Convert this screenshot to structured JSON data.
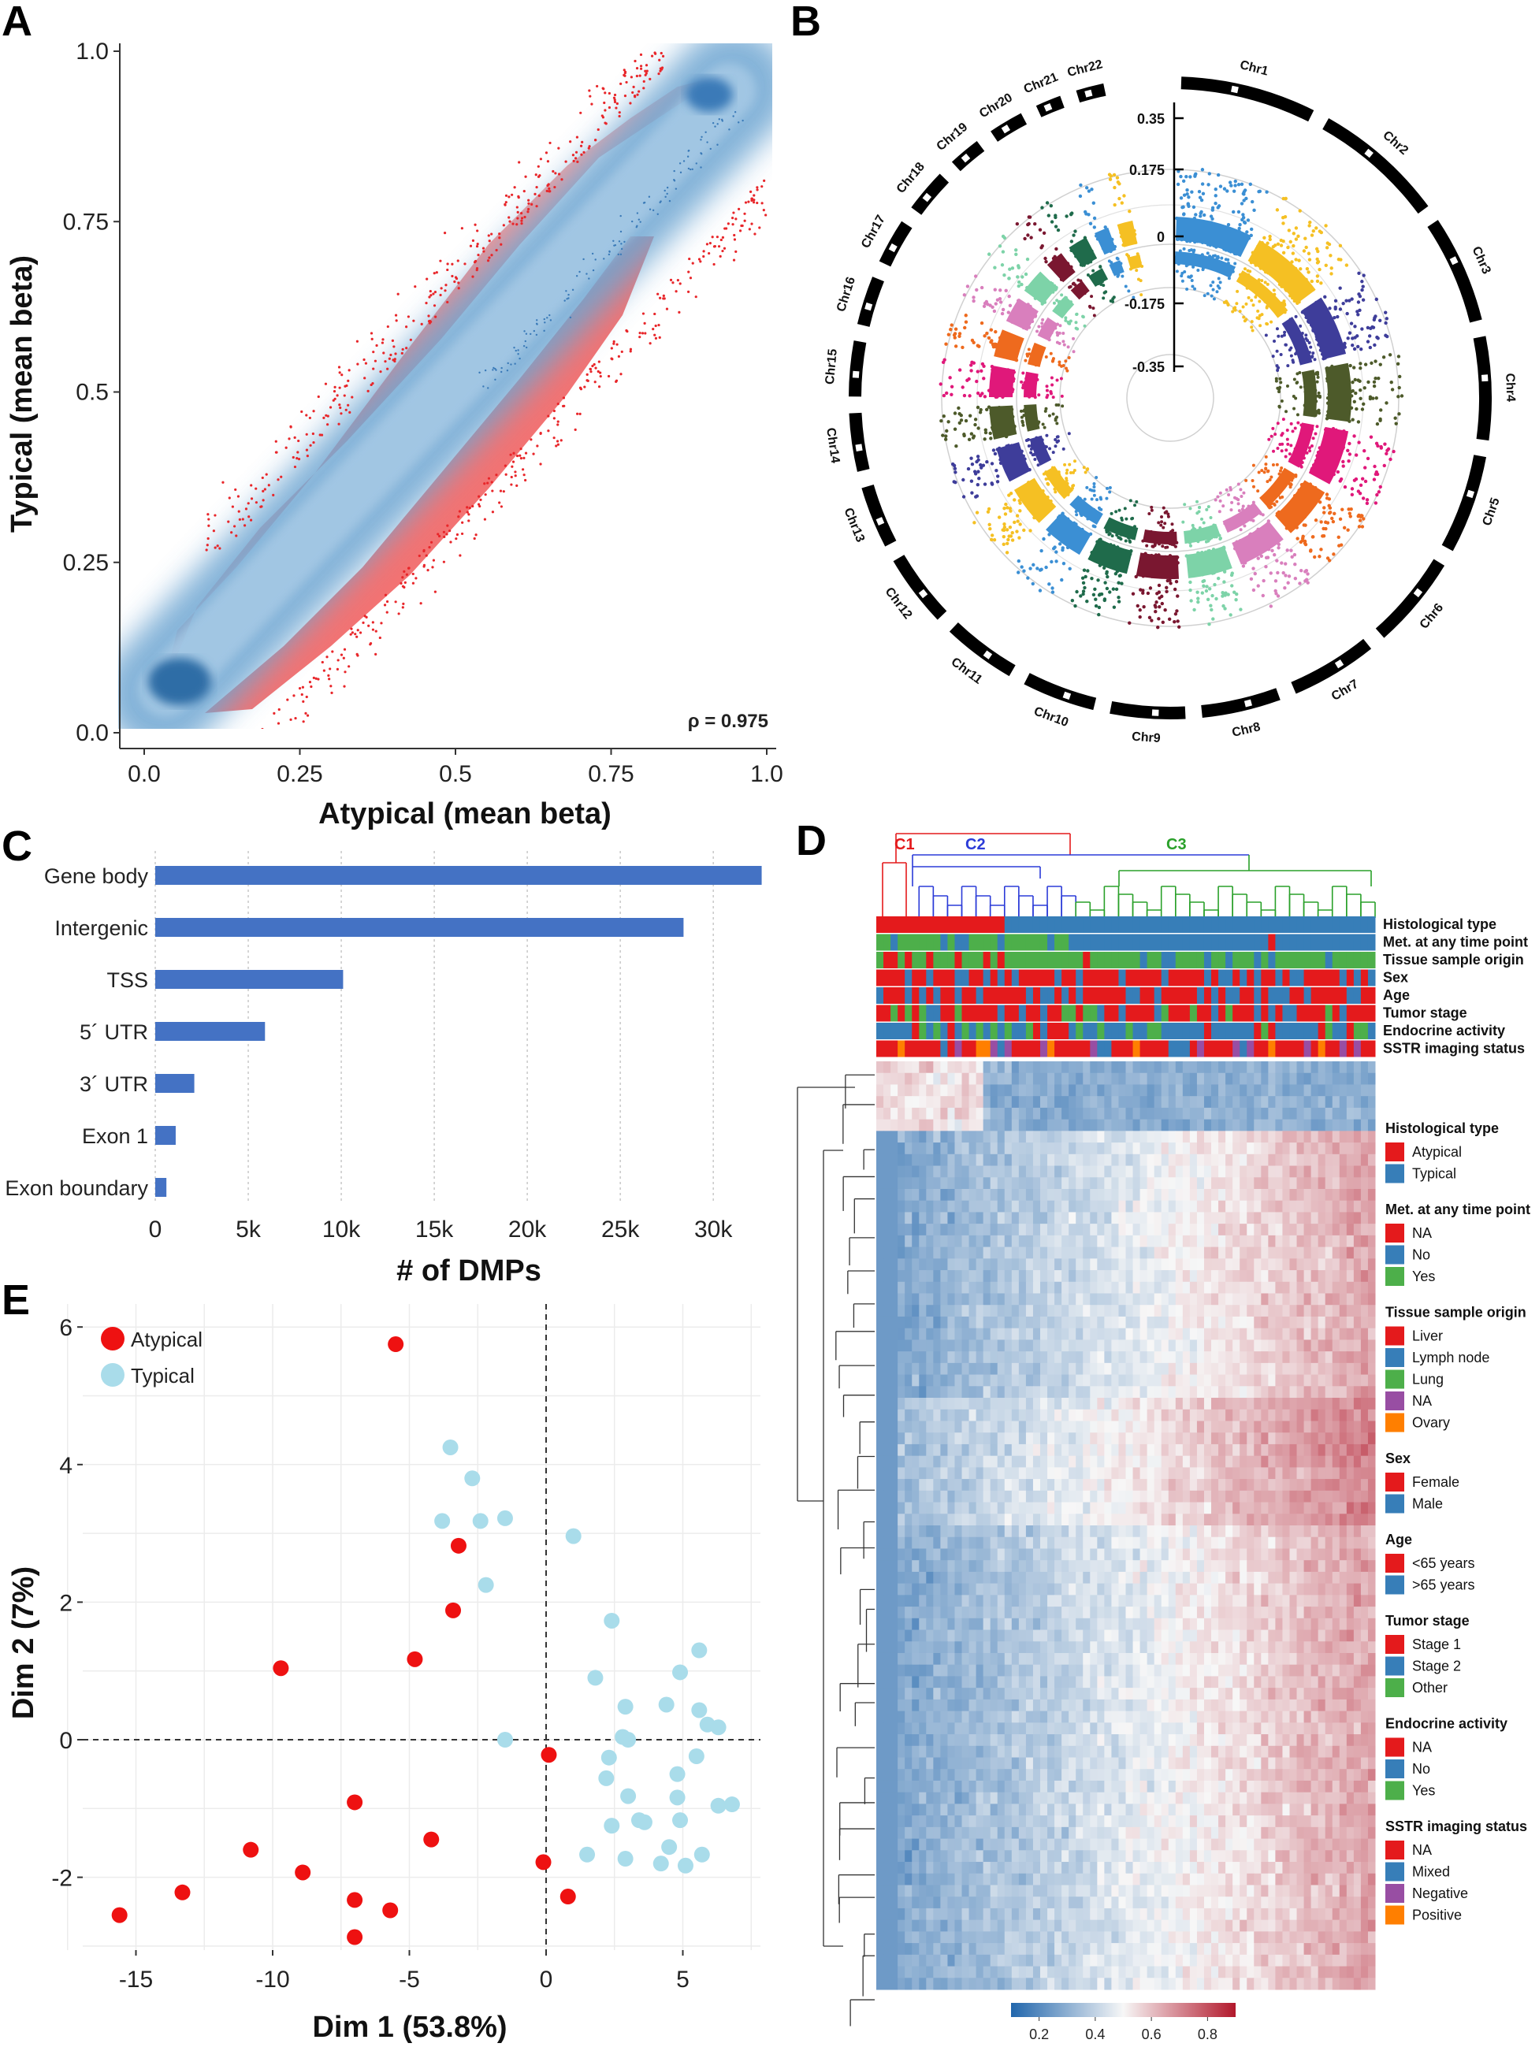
{
  "chart_data": [
    {
      "panel": "A",
      "type": "scatter",
      "xlabel": "Atypical (mean beta)",
      "ylabel": "Typical (mean beta)",
      "xlim": [
        0,
        1
      ],
      "ylim": [
        0,
        1
      ],
      "xticks": [
        "0.0",
        "0.25",
        "0.5",
        "0.75",
        "1.0"
      ],
      "yticks": [
        "0.0",
        "0.25",
        "0.5",
        "0.75",
        "1.0"
      ],
      "annotation": "ρ = 0.975",
      "colors": {
        "density": "#3a7ab8",
        "dmp": "#e8262a"
      }
    },
    {
      "panel": "B",
      "type": "manhattan-circular",
      "chromosomes": [
        "Chr1",
        "Chr2",
        "Chr3",
        "Chr4",
        "Chr5",
        "Chr6",
        "Chr7",
        "Chr8",
        "Chr9",
        "Chr10",
        "Chr11",
        "Chr12",
        "Chr13",
        "Chr14",
        "Chr15",
        "Chr16",
        "Chr17",
        "Chr18",
        "Chr19",
        "Chr20",
        "Chr21",
        "Chr22"
      ],
      "radial_ticks": [
        "0.35",
        "0.175",
        "0",
        "-0.175",
        "-0.35"
      ],
      "colors": [
        "#3b8fd4",
        "#f5c023",
        "#3e3d9a",
        "#4d5a2a",
        "#e0187a",
        "#ee6a1e",
        "#d97fbd",
        "#7dd3a8",
        "#7a1730",
        "#1f6b4b"
      ]
    },
    {
      "panel": "C",
      "type": "bar",
      "orientation": "horizontal",
      "categories": [
        "Gene body",
        "Intergenic",
        "TSS",
        "5´ UTR",
        "3´ UTR",
        "Exon 1",
        "Exon boundary"
      ],
      "values": [
        32600,
        28400,
        10100,
        5900,
        2100,
        1100,
        600
      ],
      "xlabel": "# of DMPs",
      "xticks": [
        "0",
        "5k",
        "10k",
        "15k",
        "20k",
        "25k",
        "30k"
      ],
      "xlim": [
        0,
        33000
      ],
      "color": "#4472c4"
    },
    {
      "panel": "D",
      "type": "heatmap",
      "clusters": [
        "C1",
        "C2",
        "C3"
      ],
      "annotation_tracks": [
        "Histological type",
        "Met. at any time point",
        "Tissue sample origin",
        "Sex",
        "Age",
        "Tumor stage",
        "Endocrine activity",
        "SSTR imaging status"
      ],
      "legend": [
        {
          "title": "Histological type",
          "items": [
            {
              "label": "Atypical",
              "color": "#e41a1c"
            },
            {
              "label": "Typical",
              "color": "#377eb8"
            }
          ]
        },
        {
          "title": "Met. at any time point",
          "items": [
            {
              "label": "NA",
              "color": "#e41a1c"
            },
            {
              "label": "No",
              "color": "#377eb8"
            },
            {
              "label": "Yes",
              "color": "#4daf4a"
            }
          ]
        },
        {
          "title": "Tissue sample origin",
          "items": [
            {
              "label": "Liver",
              "color": "#e41a1c"
            },
            {
              "label": "Lymph node",
              "color": "#377eb8"
            },
            {
              "label": "Lung",
              "color": "#4daf4a"
            },
            {
              "label": "NA",
              "color": "#984ea3"
            },
            {
              "label": "Ovary",
              "color": "#ff7f00"
            }
          ]
        },
        {
          "title": "Sex",
          "items": [
            {
              "label": "Female",
              "color": "#e41a1c"
            },
            {
              "label": "Male",
              "color": "#377eb8"
            }
          ]
        },
        {
          "title": "Age",
          "items": [
            {
              "label": "<65 years",
              "color": "#e41a1c"
            },
            {
              "label": ">65 years",
              "color": "#377eb8"
            }
          ]
        },
        {
          "title": "Tumor stage",
          "items": [
            {
              "label": "Stage 1",
              "color": "#e41a1c"
            },
            {
              "label": "Stage 2",
              "color": "#377eb8"
            },
            {
              "label": "Other",
              "color": "#4daf4a"
            }
          ]
        },
        {
          "title": "Endocrine activity",
          "items": [
            {
              "label": "NA",
              "color": "#e41a1c"
            },
            {
              "label": "No",
              "color": "#377eb8"
            },
            {
              "label": "Yes",
              "color": "#4daf4a"
            }
          ]
        },
        {
          "title": "SSTR imaging status",
          "items": [
            {
              "label": "NA",
              "color": "#e41a1c"
            },
            {
              "label": "Mixed",
              "color": "#377eb8"
            },
            {
              "label": "Negative",
              "color": "#984ea3"
            },
            {
              "label": "Positive",
              "color": "#ff7f00"
            }
          ]
        }
      ],
      "colorbar_ticks": [
        "0.2",
        "0.4",
        "0.6",
        "0.8"
      ],
      "colorbar_range": [
        0.1,
        0.9
      ]
    },
    {
      "panel": "E",
      "type": "scatter",
      "xlabel": "Dim 1 (53.8%)",
      "ylabel": "Dim 2 (7%)",
      "xlim": [
        -16.5,
        8
      ],
      "ylim": [
        -3.2,
        6.3
      ],
      "xticks": [
        -15,
        -10,
        -5,
        0,
        5
      ],
      "yticks": [
        6,
        4,
        2,
        0,
        -2
      ],
      "series": [
        {
          "name": "Atypical",
          "color": "#ee1111",
          "points": [
            [
              -5.5,
              5.75
            ],
            [
              -3.2,
              2.82
            ],
            [
              -3.4,
              1.88
            ],
            [
              -4.8,
              1.17
            ],
            [
              -9.7,
              1.04
            ],
            [
              0.1,
              -0.22
            ],
            [
              -7.0,
              -0.91
            ],
            [
              -4.2,
              -1.45
            ],
            [
              -10.8,
              -1.6
            ],
            [
              -8.9,
              -1.93
            ],
            [
              -0.1,
              -1.78
            ],
            [
              0.8,
              -2.28
            ],
            [
              -13.3,
              -2.22
            ],
            [
              -7.0,
              -2.33
            ],
            [
              -5.7,
              -2.48
            ],
            [
              -15.6,
              -2.55
            ],
            [
              -7.0,
              -2.87
            ]
          ]
        },
        {
          "name": "Typical",
          "color": "#a9dcea",
          "points": [
            [
              -3.5,
              4.25
            ],
            [
              -2.7,
              3.8
            ],
            [
              -3.8,
              3.18
            ],
            [
              -2.4,
              3.18
            ],
            [
              -1.5,
              3.22
            ],
            [
              1.0,
              2.96
            ],
            [
              -2.2,
              2.25
            ],
            [
              2.4,
              1.73
            ],
            [
              5.6,
              1.3
            ],
            [
              1.8,
              0.9
            ],
            [
              4.9,
              0.98
            ],
            [
              2.9,
              0.48
            ],
            [
              4.4,
              0.51
            ],
            [
              5.6,
              0.43
            ],
            [
              5.9,
              0.22
            ],
            [
              6.3,
              0.18
            ],
            [
              -1.5,
              0.0
            ],
            [
              2.8,
              0.04
            ],
            [
              3.0,
              0.0
            ],
            [
              2.3,
              -0.26
            ],
            [
              5.5,
              -0.24
            ],
            [
              2.2,
              -0.56
            ],
            [
              4.8,
              -0.5
            ],
            [
              3.0,
              -0.82
            ],
            [
              4.8,
              -0.84
            ],
            [
              6.3,
              -0.96
            ],
            [
              6.8,
              -0.94
            ],
            [
              3.4,
              -1.17
            ],
            [
              3.6,
              -1.2
            ],
            [
              2.4,
              -1.25
            ],
            [
              4.9,
              -1.17
            ],
            [
              1.5,
              -1.67
            ],
            [
              2.9,
              -1.73
            ],
            [
              4.5,
              -1.56
            ],
            [
              5.7,
              -1.67
            ],
            [
              4.2,
              -1.8
            ],
            [
              5.1,
              -1.83
            ]
          ]
        }
      ],
      "legend": [
        "Atypical",
        "Typical"
      ]
    }
  ],
  "panels": {
    "A": {
      "label": "A"
    },
    "B": {
      "label": "B"
    },
    "C": {
      "label": "C"
    },
    "D": {
      "label": "D"
    },
    "E": {
      "label": "E"
    }
  }
}
